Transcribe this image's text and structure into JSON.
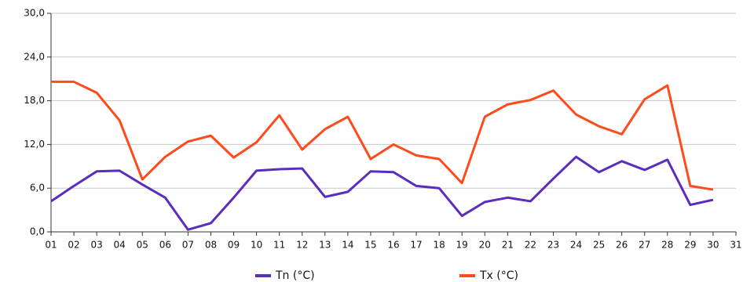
{
  "chart_data": {
    "type": "line",
    "categories": [
      "01",
      "02",
      "03",
      "04",
      "05",
      "06",
      "07",
      "08",
      "09",
      "10",
      "11",
      "12",
      "13",
      "14",
      "15",
      "16",
      "17",
      "18",
      "19",
      "20",
      "21",
      "22",
      "23",
      "24",
      "25",
      "26",
      "27",
      "28",
      "29",
      "30",
      "31"
    ],
    "series": [
      {
        "name": "Tn (°C)",
        "color": "#5a2dbd",
        "values": [
          4.2,
          6.3,
          8.3,
          8.4,
          6.5,
          4.7,
          0.3,
          1.2,
          4.7,
          8.4,
          8.6,
          8.7,
          4.8,
          5.5,
          8.3,
          8.2,
          6.3,
          6.0,
          2.2,
          4.1,
          4.7,
          4.2,
          7.3,
          10.3,
          8.2,
          9.7,
          8.5,
          9.9,
          3.7,
          4.4,
          null
        ]
      },
      {
        "name": "Tx (°C)",
        "color": "#ff4a1c",
        "values": [
          20.6,
          20.6,
          19.1,
          15.3,
          7.2,
          10.3,
          12.4,
          13.2,
          10.2,
          12.3,
          16.0,
          11.3,
          14.1,
          15.8,
          10.0,
          12.0,
          10.5,
          10.0,
          6.7,
          15.8,
          17.5,
          18.1,
          19.4,
          16.1,
          14.5,
          13.4,
          18.2,
          20.1,
          6.3,
          5.8,
          null
        ]
      }
    ],
    "ylim": [
      0,
      30
    ],
    "yticks": [
      {
        "value": 0,
        "label": "0,0"
      },
      {
        "value": 6,
        "label": "6,0"
      },
      {
        "value": 12,
        "label": "12,0"
      },
      {
        "value": 18,
        "label": "18,0"
      },
      {
        "value": 24,
        "label": "24,0"
      },
      {
        "value": 30,
        "label": "30,0"
      }
    ],
    "grid": true,
    "legend": "bottom"
  }
}
